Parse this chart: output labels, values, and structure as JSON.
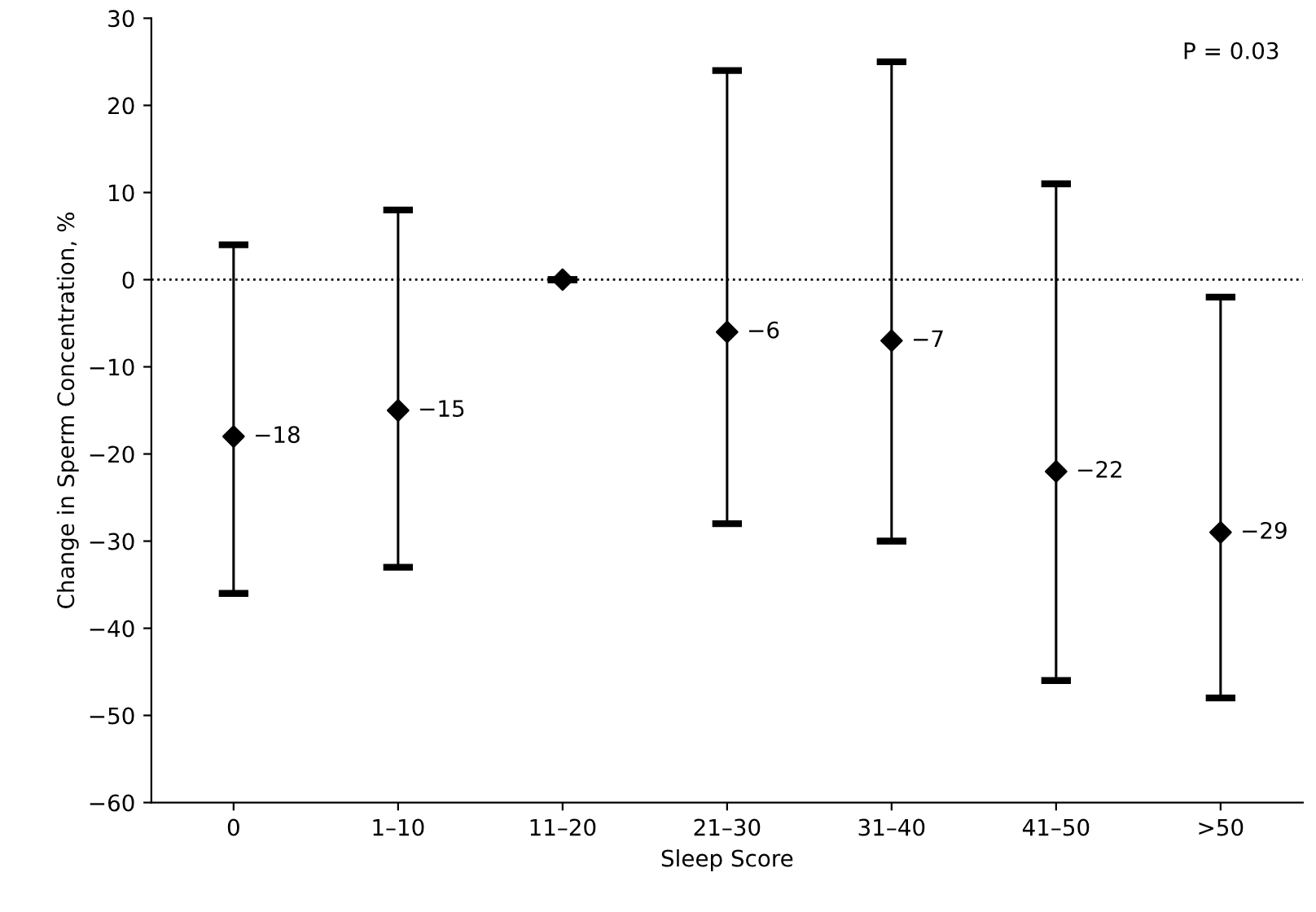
{
  "chart_data": {
    "type": "scatter",
    "xlabel": "Sleep Score",
    "ylabel": "Change in Sperm Concentration, %",
    "categories": [
      "0",
      "1–10",
      "11–20",
      "21–30",
      "31–40",
      "41–50",
      ">50"
    ],
    "values": [
      -18,
      -15,
      0,
      -6,
      -7,
      -22,
      -29
    ],
    "errors": [
      [
        -36,
        4
      ],
      [
        -33,
        8
      ],
      [
        0,
        0
      ],
      [
        -28,
        24
      ],
      [
        -30,
        25
      ],
      [
        -46,
        11
      ],
      [
        -48,
        -2
      ]
    ],
    "value_labels": [
      "−18",
      "−15",
      null,
      "−6",
      "−7",
      "−22",
      "−29"
    ],
    "color": "#000000",
    "marker": "diamond",
    "ylim": [
      -60,
      30
    ],
    "yticks": [
      {
        "value": -60,
        "label": "−60"
      },
      {
        "value": -50,
        "label": "−50"
      },
      {
        "value": -40,
        "label": "−40"
      },
      {
        "value": -30,
        "label": "−30"
      },
      {
        "value": -20,
        "label": "−20"
      },
      {
        "value": -10,
        "label": "−10"
      },
      0,
      10,
      20,
      30
    ],
    "ref_lines": [
      {
        "axis": "y",
        "value": 0,
        "label": null,
        "line_style": "dotted",
        "color": "#000000"
      }
    ],
    "annotations": [
      "P = 0.03"
    ],
    "grid": false,
    "legend": false
  }
}
